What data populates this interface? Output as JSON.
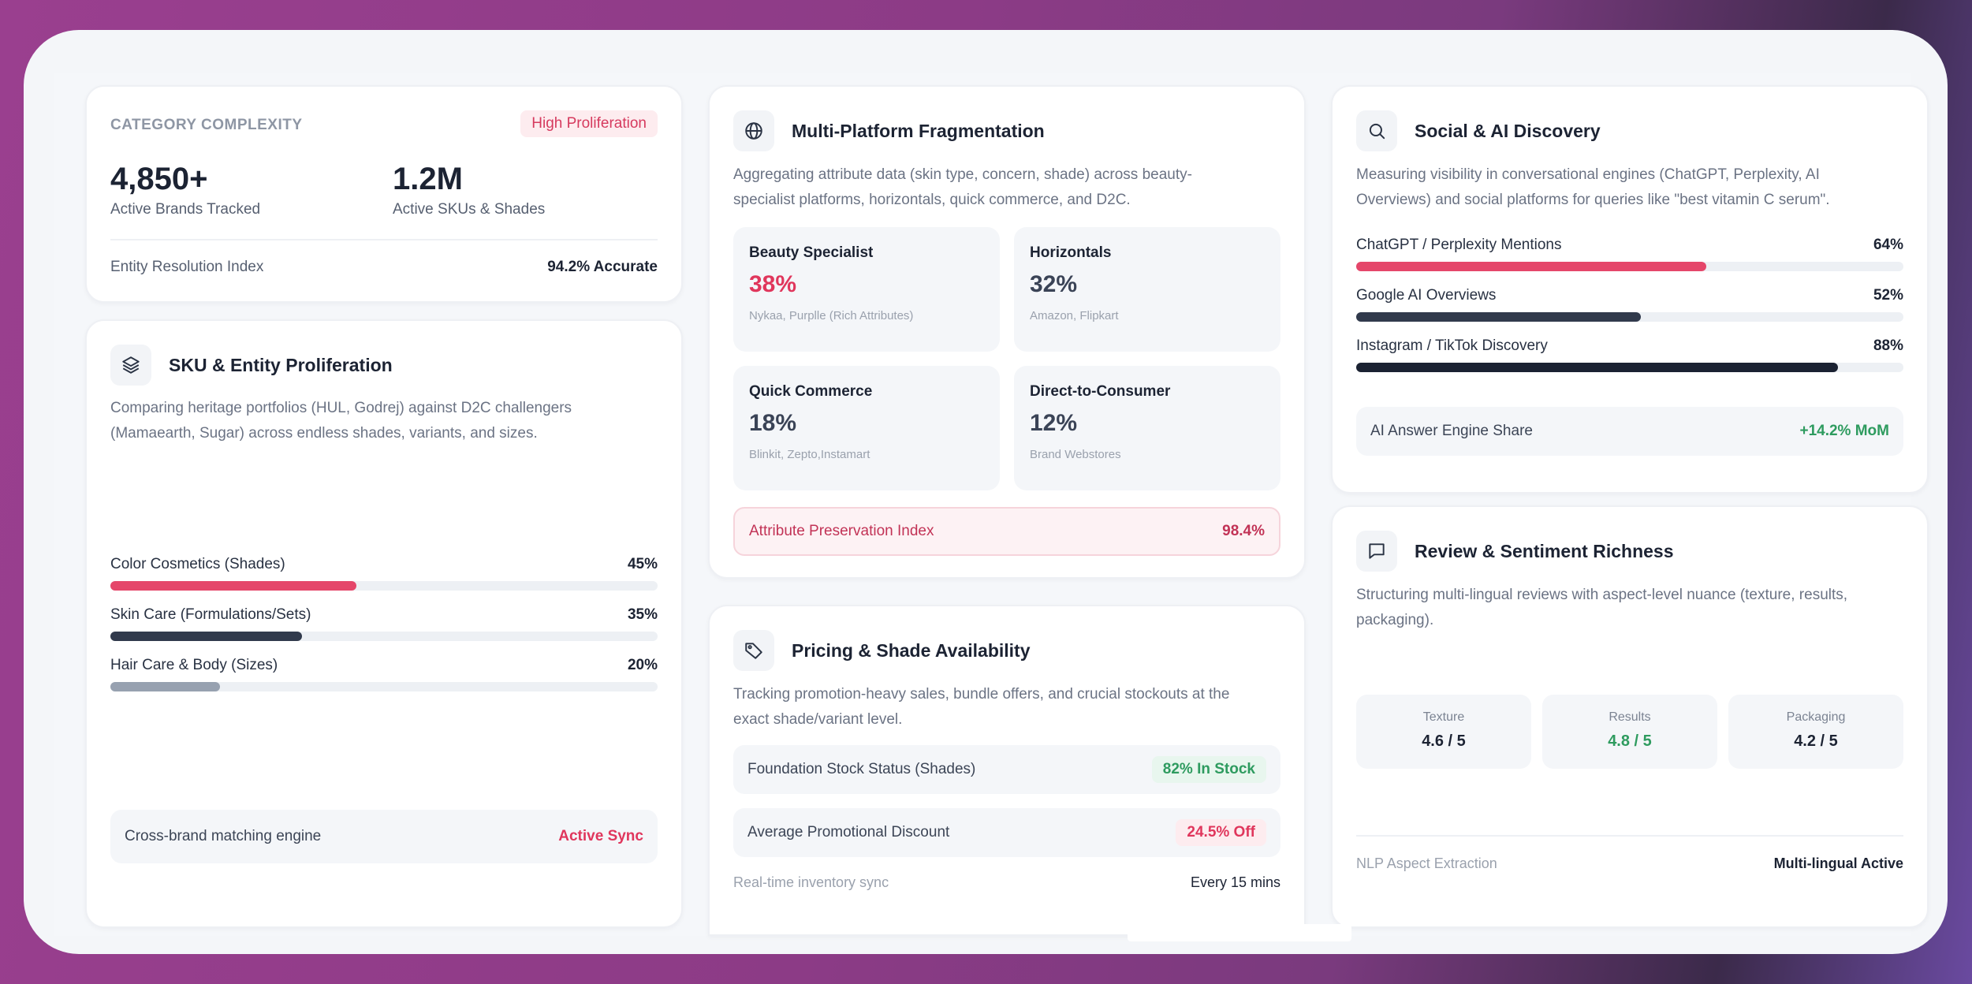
{
  "colors": {
    "accent_red": "#e5466a",
    "dark_slate": "#313a4c",
    "navy": "#1b2232",
    "gray": "#97a1b0",
    "green": "#2e9b5f"
  },
  "category": {
    "label": "CATEGORY COMPLEXITY",
    "badge": "High Proliferation",
    "stat1_value": "4,850+",
    "stat1_label": "Active Brands Tracked",
    "stat2_value": "1.2M",
    "stat2_label": "Active SKUs & Shades",
    "footer_label": "Entity Resolution Index",
    "footer_value": "94.2% Accurate"
  },
  "sku": {
    "icon": "layers-icon",
    "title": "SKU & Entity Proliferation",
    "desc_line1": "Comparing heritage portfolios (HUL, Godrej) against D2C challengers",
    "desc_line2": "(Mamaearth, Sugar) across endless shades, variants, and sizes.",
    "bars": [
      {
        "label": "Color Cosmetics (Shades)",
        "pct_text": "45%",
        "value": 45
      },
      {
        "label": "Skin Care (Formulations/Sets)",
        "pct_text": "35%",
        "value": 35
      },
      {
        "label": "Hair Care & Body (Sizes)",
        "pct_text": "20%",
        "value": 20
      }
    ],
    "footer_label": "Cross-brand matching engine",
    "footer_value": "Active Sync"
  },
  "platform": {
    "icon": "globe-icon",
    "title": "Multi-Platform Fragmentation",
    "desc_line1": "Aggregating attribute data (skin type, concern, shade) across beauty-",
    "desc_line2": "specialist platforms, horizontals, quick commerce, and D2C.",
    "boxes": [
      {
        "title": "Beauty Specialist",
        "value": "38%",
        "sub": "Nykaa, Purplle (Rich Attributes)"
      },
      {
        "title": "Horizontals",
        "value": "32%",
        "sub": "Amazon, Flipkart"
      },
      {
        "title": "Quick Commerce",
        "value": "18%",
        "sub": "Blinkit, Zepto,Instamart"
      },
      {
        "title": "Direct-to-Consumer",
        "value": "12%",
        "sub": "Brand Webstores"
      }
    ],
    "footer_label": "Attribute Preservation Index",
    "footer_value": "98.4%"
  },
  "pricing": {
    "icon": "tag-icon",
    "title": "Pricing & Shade Availability",
    "desc_line1": "Tracking promotion-heavy sales, bundle offers, and crucial stockouts at the",
    "desc_line2": "exact shade/variant level.",
    "row1_label": "Foundation Stock Status (Shades)",
    "row1_value": "82% In Stock",
    "row2_label": "Average Promotional Discount",
    "row2_value": "24.5% Off",
    "footer_label": "Real-time inventory sync",
    "footer_value": "Every 15 mins"
  },
  "social": {
    "icon": "search-icon",
    "title": "Social & AI Discovery",
    "desc_line1": "Measuring visibility in conversational engines (ChatGPT, Perplexity, AI",
    "desc_line2": "Overviews) and social platforms for queries like \"best vitamin C serum\".",
    "bars": [
      {
        "label": "ChatGPT / Perplexity Mentions",
        "pct_text": "64%",
        "value": 64
      },
      {
        "label": "Google AI Overviews",
        "pct_text": "52%",
        "value": 52
      },
      {
        "label": "Instagram / TikTok Discovery",
        "pct_text": "88%",
        "value": 88
      }
    ],
    "footer_label": "AI Answer Engine Share",
    "footer_value": "+14.2% MoM"
  },
  "review": {
    "icon": "chat-bubble-icon",
    "title": "Review & Sentiment Richness",
    "desc_line1": "Structuring multi-lingual reviews with aspect-level nuance (texture, results,",
    "desc_line2": "packaging).",
    "aspects": [
      {
        "label": "Texture",
        "value": "4.6 / 5"
      },
      {
        "label": "Results",
        "value": "4.8 / 5"
      },
      {
        "label": "Packaging",
        "value": "4.2 / 5"
      }
    ],
    "footer_label": "NLP Aspect Extraction",
    "footer_value": "Multi-lingual Active"
  }
}
